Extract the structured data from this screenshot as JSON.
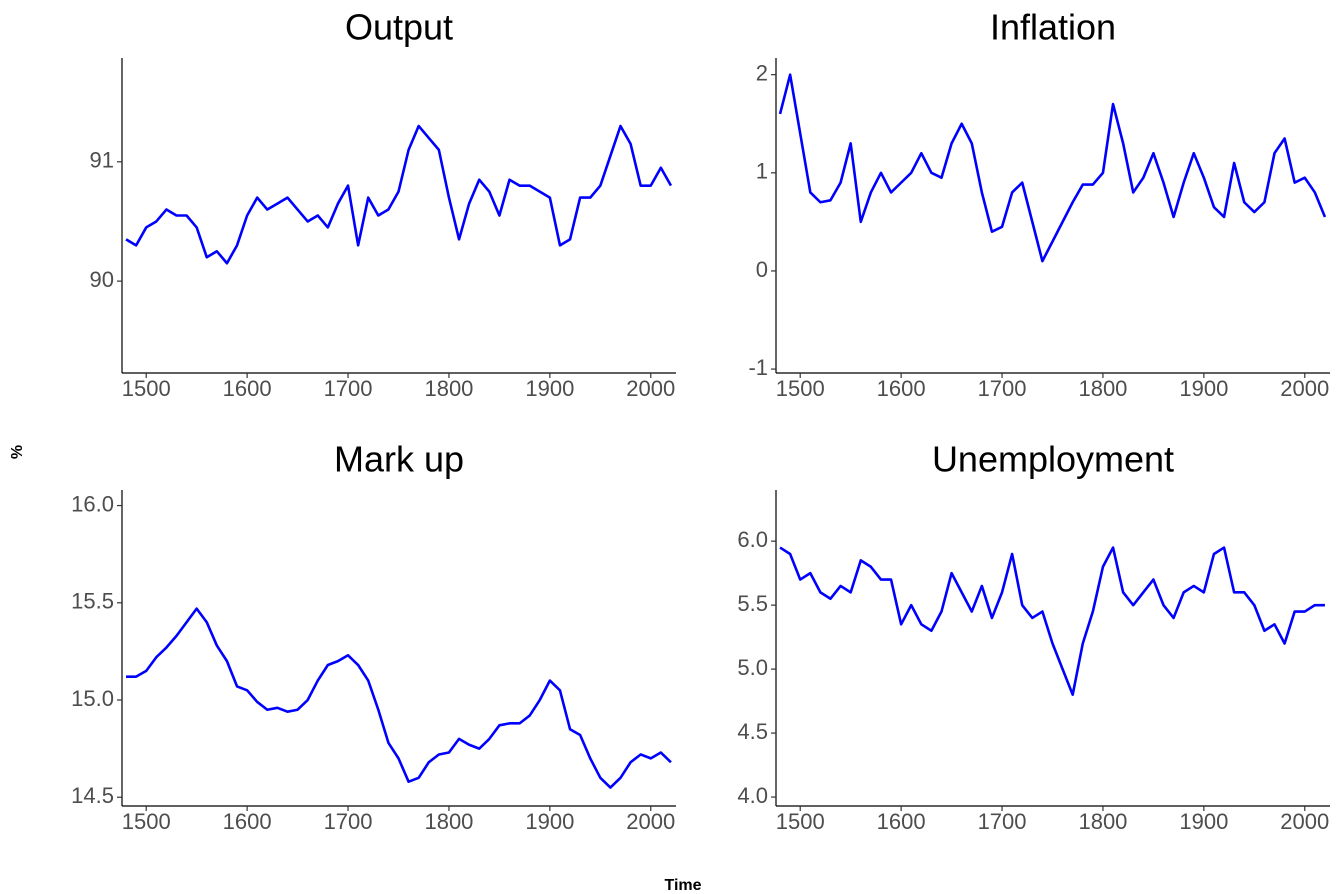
{
  "y_label": "%",
  "x_label": "Time",
  "chart_data": [
    {
      "type": "line",
      "title": "Output",
      "x": [
        1480,
        1490,
        1500,
        1510,
        1520,
        1530,
        1540,
        1550,
        1560,
        1570,
        1580,
        1590,
        1600,
        1610,
        1620,
        1630,
        1640,
        1650,
        1660,
        1670,
        1680,
        1690,
        1700,
        1710,
        1720,
        1730,
        1740,
        1750,
        1760,
        1770,
        1780,
        1790,
        1800,
        1810,
        1820,
        1830,
        1840,
        1850,
        1860,
        1870,
        1880,
        1890,
        1900,
        1910,
        1920,
        1930,
        1940,
        1950,
        1960,
        1970,
        1980,
        1990,
        2000,
        2010,
        2020
      ],
      "series": [
        {
          "color": "#0000ff",
          "values": [
            90.35,
            90.3,
            90.45,
            90.5,
            90.6,
            90.55,
            90.55,
            90.45,
            90.2,
            90.25,
            90.15,
            90.3,
            90.55,
            90.7,
            90.6,
            90.65,
            90.7,
            90.6,
            90.5,
            90.55,
            90.45,
            90.65,
            90.8,
            90.3,
            90.7,
            90.55,
            90.6,
            90.75,
            91.1,
            91.3,
            91.2,
            91.1,
            90.7,
            90.35,
            90.65,
            90.85,
            90.75,
            90.55,
            90.85,
            90.8,
            90.8,
            90.75,
            90.7,
            90.3,
            90.35,
            90.7,
            90.7,
            90.8,
            91.05,
            91.3,
            91.15,
            90.8,
            90.8,
            90.95,
            90.8
          ]
        }
      ],
      "xlim": [
        1476,
        2025
      ],
      "xticks": [
        1500,
        1600,
        1700,
        1800,
        1900,
        2000
      ],
      "ylim": [
        89.23,
        91.87
      ],
      "yticks": [
        90,
        91
      ]
    },
    {
      "type": "line",
      "title": "Inflation",
      "x": [
        1480,
        1490,
        1500,
        1510,
        1520,
        1530,
        1540,
        1550,
        1560,
        1570,
        1580,
        1590,
        1600,
        1610,
        1620,
        1630,
        1640,
        1650,
        1660,
        1670,
        1680,
        1690,
        1700,
        1710,
        1720,
        1730,
        1740,
        1750,
        1760,
        1770,
        1780,
        1790,
        1800,
        1810,
        1820,
        1830,
        1840,
        1850,
        1860,
        1870,
        1880,
        1890,
        1900,
        1910,
        1920,
        1930,
        1940,
        1950,
        1960,
        1970,
        1980,
        1990,
        2000,
        2010,
        2020
      ],
      "series": [
        {
          "color": "#0000ff",
          "values": [
            1.6,
            2.0,
            1.4,
            0.8,
            0.7,
            0.72,
            0.9,
            1.3,
            0.5,
            0.8,
            1.0,
            0.8,
            0.9,
            1.0,
            1.2,
            1.0,
            0.95,
            1.3,
            1.5,
            1.3,
            0.8,
            0.4,
            0.45,
            0.8,
            0.9,
            0.5,
            0.1,
            0.3,
            0.5,
            0.7,
            0.88,
            0.88,
            1.0,
            1.7,
            1.3,
            0.8,
            0.95,
            1.2,
            0.9,
            0.55,
            0.9,
            1.2,
            0.95,
            0.65,
            0.55,
            1.1,
            0.7,
            0.6,
            0.7,
            1.2,
            1.35,
            0.9,
            0.95,
            0.8,
            0.55
          ]
        }
      ],
      "xlim": [
        1476,
        2025
      ],
      "xticks": [
        1500,
        1600,
        1700,
        1800,
        1900,
        2000
      ],
      "ylim": [
        -1.04,
        2.17
      ],
      "yticks": [
        -1,
        0,
        1,
        2
      ]
    },
    {
      "type": "line",
      "title": "Mark up",
      "x": [
        1480,
        1490,
        1500,
        1510,
        1520,
        1530,
        1540,
        1550,
        1560,
        1570,
        1580,
        1590,
        1600,
        1610,
        1620,
        1630,
        1640,
        1650,
        1660,
        1670,
        1680,
        1690,
        1700,
        1710,
        1720,
        1730,
        1740,
        1750,
        1760,
        1770,
        1780,
        1790,
        1800,
        1810,
        1820,
        1830,
        1840,
        1850,
        1860,
        1870,
        1880,
        1890,
        1900,
        1910,
        1920,
        1930,
        1940,
        1950,
        1960,
        1970,
        1980,
        1990,
        2000,
        2010,
        2020
      ],
      "series": [
        {
          "color": "#0000ff",
          "values": [
            15.12,
            15.12,
            15.15,
            15.22,
            15.27,
            15.33,
            15.4,
            15.47,
            15.4,
            15.28,
            15.2,
            15.07,
            15.05,
            14.99,
            14.95,
            14.96,
            14.94,
            14.95,
            15.0,
            15.1,
            15.18,
            15.2,
            15.23,
            15.18,
            15.1,
            14.95,
            14.78,
            14.7,
            14.58,
            14.6,
            14.68,
            14.72,
            14.73,
            14.8,
            14.77,
            14.75,
            14.8,
            14.87,
            14.88,
            14.88,
            14.92,
            15.0,
            15.1,
            15.05,
            14.85,
            14.82,
            14.7,
            14.6,
            14.55,
            14.6,
            14.68,
            14.72,
            14.7,
            14.73,
            14.68
          ]
        }
      ],
      "xlim": [
        1476,
        2025
      ],
      "xticks": [
        1500,
        1600,
        1700,
        1800,
        1900,
        2000
      ],
      "ylim": [
        14.455,
        16.08
      ],
      "yticks": [
        {
          "value": 14.5,
          "label": "14.5"
        },
        {
          "value": 15,
          "label": "15.0"
        },
        15.5,
        {
          "value": 16,
          "label": "16.0"
        }
      ]
    },
    {
      "type": "line",
      "title": "Unemployment",
      "x": [
        1480,
        1490,
        1500,
        1510,
        1520,
        1530,
        1540,
        1550,
        1560,
        1570,
        1580,
        1590,
        1600,
        1610,
        1620,
        1630,
        1640,
        1650,
        1660,
        1670,
        1680,
        1690,
        1700,
        1710,
        1720,
        1730,
        1740,
        1750,
        1760,
        1770,
        1780,
        1790,
        1800,
        1810,
        1820,
        1830,
        1840,
        1850,
        1860,
        1870,
        1880,
        1890,
        1900,
        1910,
        1920,
        1930,
        1940,
        1950,
        1960,
        1970,
        1980,
        1990,
        2000,
        2010,
        2020
      ],
      "series": [
        {
          "color": "#0000ff",
          "values": [
            5.95,
            5.9,
            5.7,
            5.75,
            5.6,
            5.55,
            5.65,
            5.6,
            5.85,
            5.8,
            5.7,
            5.7,
            5.35,
            5.5,
            5.35,
            5.3,
            5.45,
            5.75,
            5.6,
            5.45,
            5.65,
            5.4,
            5.6,
            5.9,
            5.5,
            5.4,
            5.45,
            5.2,
            5.0,
            4.8,
            5.2,
            5.45,
            5.8,
            5.95,
            5.6,
            5.5,
            5.6,
            5.7,
            5.5,
            5.4,
            5.6,
            5.65,
            5.6,
            5.9,
            5.95,
            5.6,
            5.6,
            5.5,
            5.3,
            5.35,
            5.2,
            5.45,
            5.45,
            5.5,
            5.5
          ]
        }
      ],
      "xlim": [
        1476,
        2025
      ],
      "xticks": [
        1500,
        1600,
        1700,
        1800,
        1900,
        2000
      ],
      "ylim": [
        3.93,
        6.4
      ],
      "yticks": [
        {
          "value": 4,
          "label": "4.0"
        },
        4.5,
        {
          "value": 5,
          "label": "5.0"
        },
        5.5,
        {
          "value": 6,
          "label": "6.0"
        }
      ]
    }
  ]
}
